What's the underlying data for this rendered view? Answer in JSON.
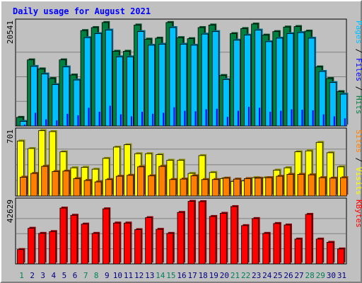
{
  "chart_data": {
    "type": "bar",
    "title": "Daily usage for August 2021",
    "categories": [
      "1",
      "2",
      "3",
      "4",
      "5",
      "6",
      "7",
      "8",
      "9",
      "10",
      "11",
      "12",
      "13",
      "14",
      "15",
      "16",
      "17",
      "18",
      "19",
      "20",
      "21",
      "22",
      "23",
      "24",
      "25",
      "26",
      "27",
      "28",
      "29",
      "30",
      "31"
    ],
    "weekend_days": [
      "1",
      "7",
      "8",
      "14",
      "15",
      "21",
      "22",
      "28",
      "29"
    ],
    "panels": [
      {
        "ymax_label": "20541",
        "ylim": [
          0,
          20541
        ],
        "legend": [
          {
            "text": "Pages",
            "color": "#00c0ff"
          },
          {
            "text": " / ",
            "color": "#000000"
          },
          {
            "text": "Files",
            "color": "#0000ff"
          },
          {
            "text": " / ",
            "color": "#000000"
          },
          {
            "text": "Hits",
            "color": "#008040"
          }
        ],
        "series": [
          {
            "name": "Hits",
            "color": "#008040",
            "values": [
              1700,
              13100,
              11300,
              9400,
              13100,
              10100,
              18900,
              19500,
              20500,
              14800,
              14800,
              20000,
              17200,
              17400,
              20500,
              17500,
              17300,
              19500,
              20000,
              10000,
              18300,
              19300,
              20200,
              18000,
              18700,
              19600,
              19700,
              18800,
              11700,
              9400,
              6800
            ]
          },
          {
            "name": "Files",
            "color": "#00c0ff",
            "values": [
              900,
              11800,
              10300,
              8200,
              11700,
              9100,
              17500,
              18300,
              19000,
              13700,
              13700,
              18700,
              16000,
              16200,
              19500,
              16200,
              16000,
              18200,
              18700,
              9200,
              17000,
              18000,
              19000,
              16700,
              17400,
              18300,
              18500,
              17400,
              10800,
              8600,
              6300
            ]
          },
          {
            "name": "Pages",
            "color": "#0000ff",
            "values": [
              250,
              2600,
              1300,
              1100,
              2400,
              2100,
              3600,
              2800,
              4000,
              2300,
              1900,
              2800,
              2400,
              2600,
              3700,
              3000,
              2900,
              3300,
              3400,
              1800,
              3000,
              3800,
              3600,
              2800,
              3000,
              3300,
              3200,
              3100,
              2300,
              1900,
              1500
            ]
          }
        ]
      },
      {
        "ymax_label": "701",
        "ylim": [
          0,
          701
        ],
        "legend": [
          {
            "text": "Sites",
            "color": "#ff8000"
          },
          {
            "text": " / ",
            "color": "#000000"
          },
          {
            "text": "Visits",
            "color": "#ffff00"
          }
        ],
        "series": [
          {
            "name": "Visits",
            "color": "#ffff00",
            "values": [
              585,
              505,
              695,
              685,
              470,
              300,
              305,
              285,
              400,
              520,
              545,
              450,
              450,
              440,
              380,
              380,
              240,
              430,
              250,
              185,
              155,
              160,
              195,
              195,
              275,
              300,
              470,
              480,
              570,
              460,
              310
            ]
          },
          {
            "name": "Sites",
            "color": "#ff8000",
            "values": [
              200,
              240,
              315,
              260,
              265,
              185,
              165,
              150,
              175,
              210,
              220,
              310,
              215,
              315,
              175,
              180,
              215,
              175,
              175,
              190,
              180,
              185,
              190,
              195,
              210,
              230,
              230,
              225,
              195,
              190,
              195
            ]
          }
        ]
      },
      {
        "ymax_label": "42629",
        "ylim": [
          0,
          42629
        ],
        "legend": [
          {
            "text": "KBytes",
            "color": "#ff0000"
          }
        ],
        "series": [
          {
            "name": "KBytes",
            "color": "#ff0000",
            "values": [
              9600,
              23800,
              20400,
              21600,
              37300,
              32500,
              26600,
              20400,
              36800,
              27300,
              27300,
              22900,
              30900,
              23100,
              20400,
              34400,
              41800,
              41600,
              31700,
              33800,
              38300,
              25600,
              30300,
              20400,
              27000,
              26000,
              16600,
              33100,
              16600,
              14400,
              10000
            ]
          }
        ]
      }
    ]
  }
}
